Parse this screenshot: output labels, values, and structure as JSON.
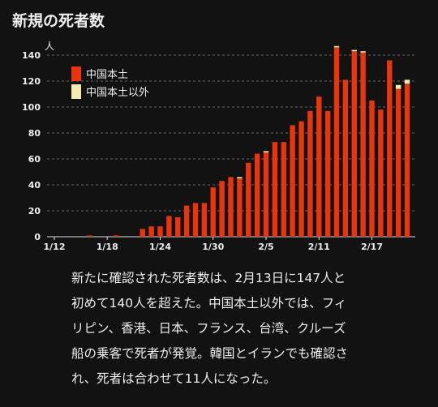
{
  "chart_data": {
    "type": "stacked_bar",
    "title": "新規の死者数",
    "y_unit_label": "人",
    "categories": [
      "1/12",
      null,
      null,
      null,
      null,
      null,
      "1/18",
      null,
      null,
      null,
      null,
      null,
      "1/24",
      null,
      null,
      null,
      null,
      null,
      "1/30",
      null,
      null,
      null,
      null,
      null,
      "2/5",
      null,
      null,
      null,
      null,
      null,
      "2/11",
      null,
      null,
      null,
      null,
      null,
      "2/17",
      null,
      null,
      null,
      null
    ],
    "series": [
      {
        "name": "中国本土",
        "color": "#e8350e",
        "values": [
          0,
          0,
          0,
          0,
          1,
          0,
          0,
          1,
          0,
          0,
          6,
          8,
          8,
          16,
          15,
          24,
          26,
          26,
          38,
          43,
          46,
          45,
          57,
          64,
          65,
          73,
          73,
          86,
          89,
          97,
          108,
          97,
          146,
          121,
          143,
          142,
          105,
          98,
          136,
          114,
          118
        ]
      },
      {
        "name": "中国本土以外",
        "color": "#f3ecb0",
        "values": [
          0,
          0,
          0,
          0,
          0,
          0,
          0,
          0,
          0,
          0,
          0,
          0,
          0,
          0,
          0,
          0,
          0,
          0,
          0,
          0,
          0,
          1,
          0,
          0,
          1,
          0,
          0,
          0,
          0,
          0,
          0,
          0,
          1,
          0,
          1,
          1,
          0,
          0,
          0,
          3,
          3
        ]
      }
    ],
    "ylim": [
      0,
      150
    ],
    "yticks": [
      0,
      20,
      40,
      60,
      80,
      100,
      120,
      140
    ],
    "grid": true,
    "legend": "top-left"
  },
  "caption_lines": [
    "新たに確認された死者数は、2月13日に147人と",
    "初めて140人を超えた。中国本土以外では、フィ",
    "リピン、香港、日本、フランス、台湾、クルーズ",
    "船の乗客で死者が発覚。韓国とイランでも確認さ",
    "れ、死者は合わせて11人になった。"
  ]
}
